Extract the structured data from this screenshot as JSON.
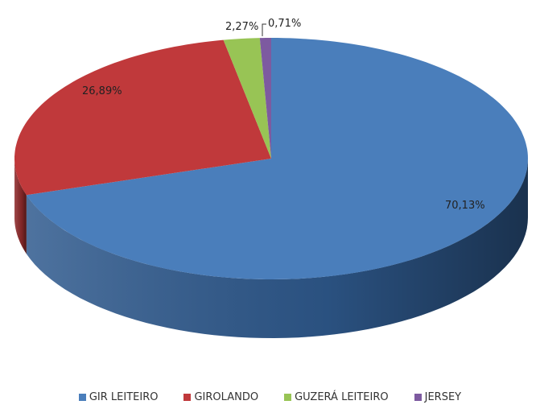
{
  "chart_data": {
    "type": "pie",
    "style": "3d",
    "categories": [
      "GIR LEITEIRO",
      "GIROLANDO",
      "GUZERÁ LEITEIRO",
      "JERSEY"
    ],
    "values": [
      70.13,
      26.89,
      2.27,
      0.71
    ],
    "data_labels": [
      "70,13%",
      "26,89%",
      "2,27%",
      "0,71%"
    ],
    "colors": [
      "#4a7ebb",
      "#c0393b",
      "#98c455",
      "#7d5aa0"
    ],
    "side_colors": [
      "#2f5a8e",
      "#8e2a2b",
      "#6f9240",
      "#5a407a"
    ],
    "legend_position": "bottom"
  }
}
